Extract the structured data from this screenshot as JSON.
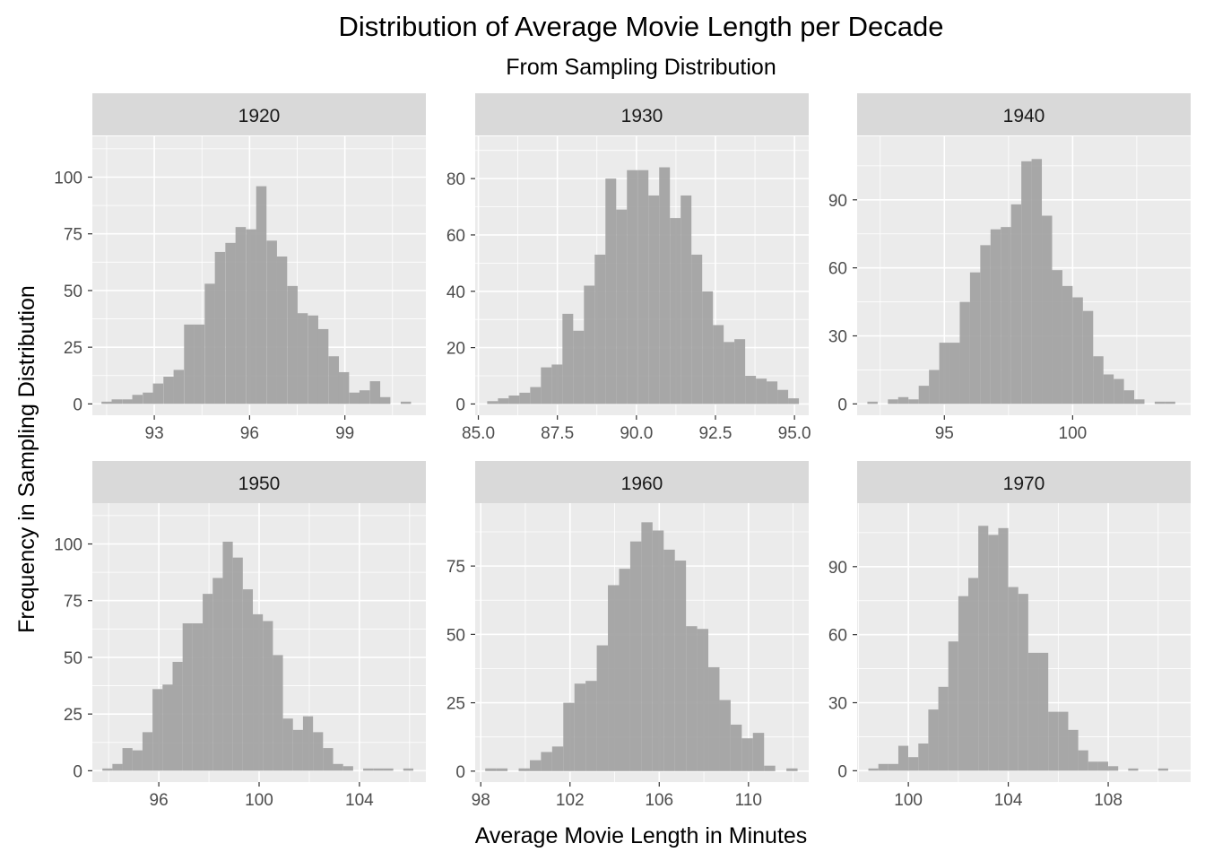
{
  "title": "Distribution of Average Movie Length per Decade",
  "subtitle": "From Sampling Distribution",
  "xlabel": "Average Movie Length in Minutes",
  "ylabel": "Frequency in Sampling Distribution",
  "colors": {
    "panel_background": "#ebebeb",
    "strip_background": "#d9d9d9",
    "grid": "#ffffff",
    "bar_fill": "#a3a3a3",
    "tick": "#333333",
    "tick_label": "#4d4d4d"
  },
  "chart_data": [
    {
      "type": "bar",
      "panel": "1920",
      "xlim": [
        91.05,
        101.55
      ],
      "ylim": [
        -5,
        118
      ],
      "binwidth": 0.325,
      "x_ticks": [
        93,
        96,
        99
      ],
      "x_tick_labels": [
        "93",
        "96",
        "99"
      ],
      "y_ticks": [
        0,
        25,
        50,
        75,
        100
      ],
      "y_tick_labels": [
        "0",
        "25",
        "50",
        "75",
        "100"
      ],
      "x": [
        91.5,
        91.82,
        92.15,
        92.47,
        92.8,
        93.12,
        93.45,
        93.77,
        94.1,
        94.42,
        94.75,
        95.07,
        95.4,
        95.72,
        96.05,
        96.37,
        96.7,
        97.02,
        97.35,
        97.67,
        98.0,
        98.32,
        98.65,
        98.97,
        99.3,
        99.62,
        99.95,
        100.27,
        100.6,
        100.92
      ],
      "values": [
        1,
        2,
        2,
        4,
        5,
        9,
        12,
        15,
        35,
        35,
        53,
        67,
        71,
        78,
        77,
        96,
        72,
        65,
        52,
        40,
        39,
        33,
        21,
        14,
        5,
        6,
        10,
        3,
        0,
        1
      ]
    },
    {
      "type": "bar",
      "panel": "1930",
      "xlim": [
        84.9,
        95.45
      ],
      "ylim": [
        -4,
        95
      ],
      "binwidth": 0.34,
      "x_ticks": [
        85.0,
        87.5,
        90.0,
        92.5,
        95.0
      ],
      "x_tick_labels": [
        "85.0",
        "87.5",
        "90.0",
        "92.5",
        "95.0"
      ],
      "y_ticks": [
        0,
        20,
        40,
        60,
        80
      ],
      "y_tick_labels": [
        "0",
        "20",
        "40",
        "60",
        "80"
      ],
      "x": [
        85.45,
        85.79,
        86.13,
        86.47,
        86.81,
        87.15,
        87.49,
        87.83,
        88.17,
        88.51,
        88.85,
        89.19,
        89.53,
        89.87,
        90.21,
        90.55,
        90.89,
        91.23,
        91.57,
        91.91,
        92.25,
        92.59,
        92.93,
        93.27,
        93.61,
        93.95,
        94.29,
        94.63,
        94.97
      ],
      "values": [
        1,
        2,
        3,
        4,
        6,
        13,
        14,
        32,
        26,
        42,
        53,
        80,
        69,
        83,
        83,
        74,
        84,
        66,
        74,
        53,
        40,
        28,
        22,
        23,
        10,
        9,
        8,
        5,
        2
      ]
    },
    {
      "type": "bar",
      "panel": "1940",
      "xlim": [
        91.6,
        104.6
      ],
      "ylim": [
        -5,
        118
      ],
      "binwidth": 0.4,
      "x_ticks": [
        95,
        100
      ],
      "x_tick_labels": [
        "95",
        "100"
      ],
      "y_ticks": [
        0,
        30,
        60,
        90
      ],
      "y_tick_labels": [
        "0",
        "30",
        "60",
        "90"
      ],
      "x": [
        92.2,
        92.6,
        93.0,
        93.4,
        93.8,
        94.2,
        94.6,
        95.0,
        95.4,
        95.8,
        96.2,
        96.6,
        97.0,
        97.4,
        97.8,
        98.2,
        98.6,
        99.0,
        99.4,
        99.8,
        100.2,
        100.6,
        101.0,
        101.4,
        101.8,
        102.2,
        102.6,
        103.0,
        103.4,
        103.8
      ],
      "values": [
        1,
        0,
        2,
        3,
        2,
        8,
        15,
        27,
        27,
        45,
        58,
        70,
        77,
        78,
        88,
        107,
        108,
        83,
        59,
        52,
        47,
        41,
        21,
        13,
        11,
        6,
        2,
        0,
        1,
        1
      ]
    },
    {
      "type": "bar",
      "panel": "1950",
      "xlim": [
        93.35,
        106.65
      ],
      "ylim": [
        -5,
        118
      ],
      "binwidth": 0.4,
      "x_ticks": [
        96,
        100,
        104
      ],
      "x_tick_labels": [
        "96",
        "100",
        "104"
      ],
      "y_ticks": [
        0,
        25,
        50,
        75,
        100
      ],
      "y_tick_labels": [
        "0",
        "25",
        "50",
        "75",
        "100"
      ],
      "x": [
        93.95,
        94.35,
        94.75,
        95.15,
        95.55,
        95.95,
        96.35,
        96.75,
        97.15,
        97.55,
        97.95,
        98.35,
        98.75,
        99.15,
        99.55,
        99.95,
        100.35,
        100.75,
        101.15,
        101.55,
        101.95,
        102.35,
        102.75,
        103.15,
        103.55,
        103.95,
        104.35,
        104.75,
        105.15,
        105.55,
        105.95
      ],
      "values": [
        1,
        3,
        10,
        9,
        17,
        36,
        38,
        48,
        65,
        65,
        78,
        85,
        101,
        94,
        80,
        69,
        66,
        51,
        23,
        18,
        24,
        17,
        10,
        3,
        2,
        0,
        1,
        1,
        1,
        0,
        1
      ]
    },
    {
      "type": "bar",
      "panel": "1960",
      "xlim": [
        97.75,
        112.7
      ],
      "ylim": [
        -4,
        98
      ],
      "binwidth": 0.5,
      "x_ticks": [
        98,
        102,
        106,
        110
      ],
      "x_tick_labels": [
        "98",
        "102",
        "106",
        "110"
      ],
      "y_ticks": [
        0,
        25,
        50,
        75
      ],
      "y_tick_labels": [
        "0",
        "25",
        "50",
        "75"
      ],
      "x": [
        98.45,
        98.95,
        99.45,
        99.95,
        100.45,
        100.95,
        101.45,
        101.95,
        102.45,
        102.95,
        103.45,
        103.95,
        104.45,
        104.95,
        105.45,
        105.95,
        106.45,
        106.95,
        107.45,
        107.95,
        108.45,
        108.95,
        109.45,
        109.95,
        110.45,
        110.95,
        111.45,
        111.95
      ],
      "values": [
        1,
        1,
        0,
        1,
        4,
        7,
        9,
        25,
        32,
        33,
        46,
        68,
        74,
        84,
        91,
        88,
        81,
        77,
        53,
        52,
        38,
        26,
        17,
        12,
        14,
        2,
        0,
        1
      ]
    },
    {
      "type": "bar",
      "panel": "1970",
      "xlim": [
        97.95,
        111.3
      ],
      "ylim": [
        -5,
        118
      ],
      "binwidth": 0.4,
      "x_ticks": [
        100,
        104,
        108
      ],
      "x_tick_labels": [
        "100",
        "104",
        "108"
      ],
      "y_ticks": [
        0,
        30,
        60,
        90
      ],
      "y_tick_labels": [
        "0",
        "30",
        "60",
        "90"
      ],
      "x": [
        98.6,
        99.0,
        99.4,
        99.8,
        100.2,
        100.6,
        101.0,
        101.4,
        101.8,
        102.2,
        102.6,
        103.0,
        103.4,
        103.8,
        104.2,
        104.6,
        105.0,
        105.4,
        105.8,
        106.2,
        106.6,
        107.0,
        107.4,
        107.8,
        108.2,
        108.6,
        109.0,
        109.4,
        109.8,
        110.2,
        110.6
      ],
      "values": [
        1,
        3,
        3,
        11,
        6,
        12,
        27,
        37,
        57,
        77,
        85,
        108,
        104,
        107,
        81,
        78,
        52,
        52,
        26,
        26,
        18,
        9,
        4,
        4,
        2,
        0,
        1,
        0,
        0,
        1,
        0
      ]
    }
  ]
}
